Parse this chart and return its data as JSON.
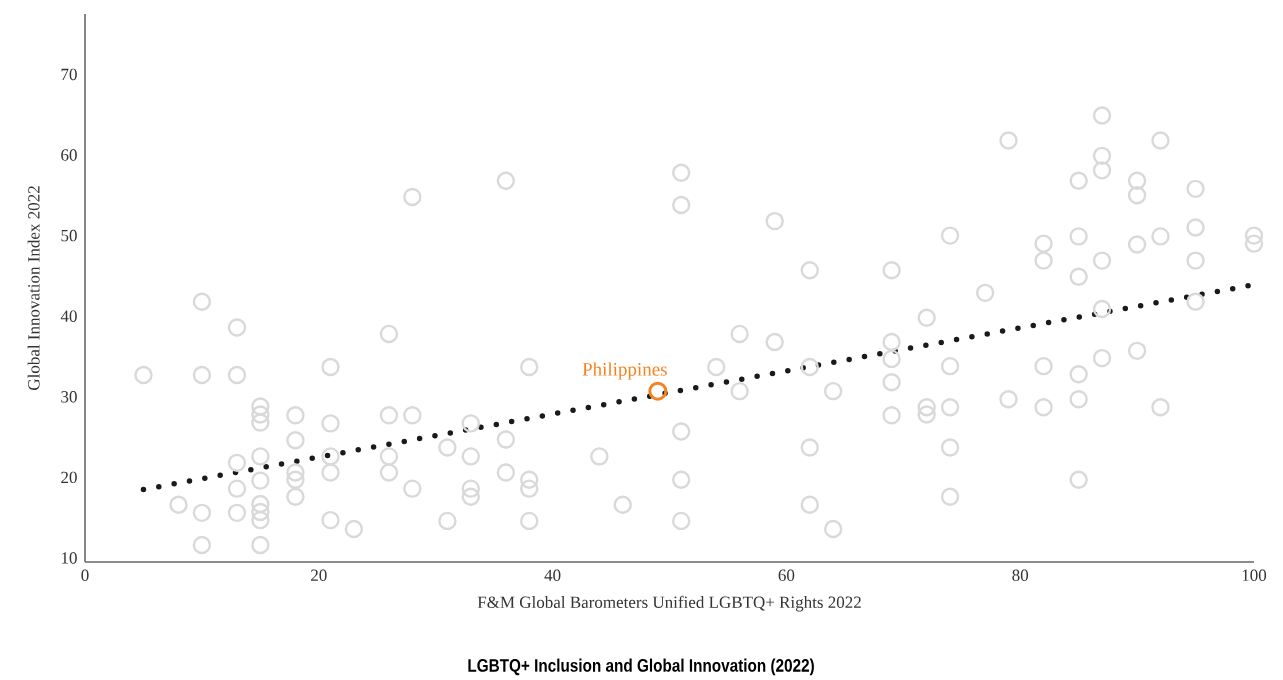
{
  "chart_data": {
    "type": "scatter",
    "title": "LGBTQ+ Inclusion and Global Innovation (2022)",
    "xlabel": "F&M Global Barometers Unified LGBTQ+ Rights 2022",
    "ylabel": "Global Innovation Index 2022",
    "xlim": [
      0,
      100
    ],
    "ylim": [
      9.5,
      77.5
    ],
    "xticks": [
      0,
      20,
      40,
      60,
      80,
      100
    ],
    "yticks": [
      10,
      20,
      30,
      40,
      50,
      60,
      70
    ],
    "marker": "circle",
    "series": [
      {
        "color": "#d9d9d9",
        "x": [
          5,
          8,
          10,
          10,
          10,
          10,
          13,
          13,
          13,
          13,
          13,
          15,
          15,
          15,
          15,
          15,
          15,
          15,
          15,
          15,
          18,
          18,
          18,
          18,
          18,
          21,
          21,
          21,
          21,
          21,
          23,
          26,
          26,
          26,
          26,
          28,
          28,
          28,
          31,
          31,
          33,
          33,
          33,
          33,
          36,
          36,
          36,
          38,
          38,
          38,
          38,
          44,
          46,
          51,
          51,
          51,
          51,
          51,
          54,
          56,
          56,
          59,
          59,
          62,
          62,
          62,
          62,
          64,
          64,
          69,
          69,
          69,
          69,
          69,
          72,
          72,
          72,
          74,
          74,
          74,
          74,
          74,
          77,
          79,
          79,
          82,
          82,
          82,
          82,
          85,
          85,
          85,
          85,
          85,
          85,
          87,
          87,
          87,
          87,
          87,
          87,
          90,
          90,
          90,
          90,
          92,
          92,
          92,
          95,
          95,
          95,
          95,
          100,
          100
        ],
        "values": [
          32.7,
          16.6,
          41.8,
          32.7,
          15.6,
          11.6,
          38.6,
          32.7,
          21.8,
          18.6,
          15.6,
          28.8,
          27.8,
          26.8,
          22.6,
          19.6,
          16.7,
          15.7,
          14.7,
          11.6,
          27.7,
          24.6,
          20.6,
          19.7,
          17.6,
          33.7,
          26.7,
          22.6,
          20.6,
          14.7,
          13.6,
          37.8,
          27.7,
          22.6,
          20.6,
          54.8,
          27.7,
          18.6,
          23.7,
          14.6,
          26.7,
          22.6,
          18.6,
          17.6,
          56.8,
          24.7,
          20.6,
          33.7,
          19.7,
          18.6,
          14.6,
          22.6,
          16.6,
          57.8,
          53.8,
          25.7,
          19.7,
          14.6,
          33.7,
          37.8,
          30.7,
          51.8,
          36.8,
          45.7,
          33.7,
          23.7,
          16.6,
          30.7,
          13.6,
          45.7,
          36.8,
          34.7,
          31.8,
          27.7,
          39.8,
          28.7,
          27.8,
          50.0,
          33.8,
          28.7,
          23.7,
          17.6,
          42.9,
          61.8,
          29.7,
          49.0,
          46.9,
          33.8,
          28.7,
          56.8,
          49.9,
          44.9,
          32.8,
          29.7,
          19.7,
          64.9,
          59.9,
          58.1,
          46.9,
          40.9,
          34.8,
          56.8,
          55.0,
          48.9,
          35.7,
          61.8,
          49.9,
          28.7,
          55.8,
          51.0,
          46.9,
          41.8,
          50.0,
          49.0
        ]
      },
      {
        "type": "scatter",
        "name": "Philippines",
        "color": "#f58220",
        "x": [
          49
        ],
        "values": [
          30.7
        ]
      },
      {
        "type": "line",
        "color": "#1a1a1a",
        "line_style": "dotted",
        "marker": "none",
        "x": [
          5,
          100
        ],
        "values": [
          18.5,
          43.9
        ]
      }
    ]
  }
}
